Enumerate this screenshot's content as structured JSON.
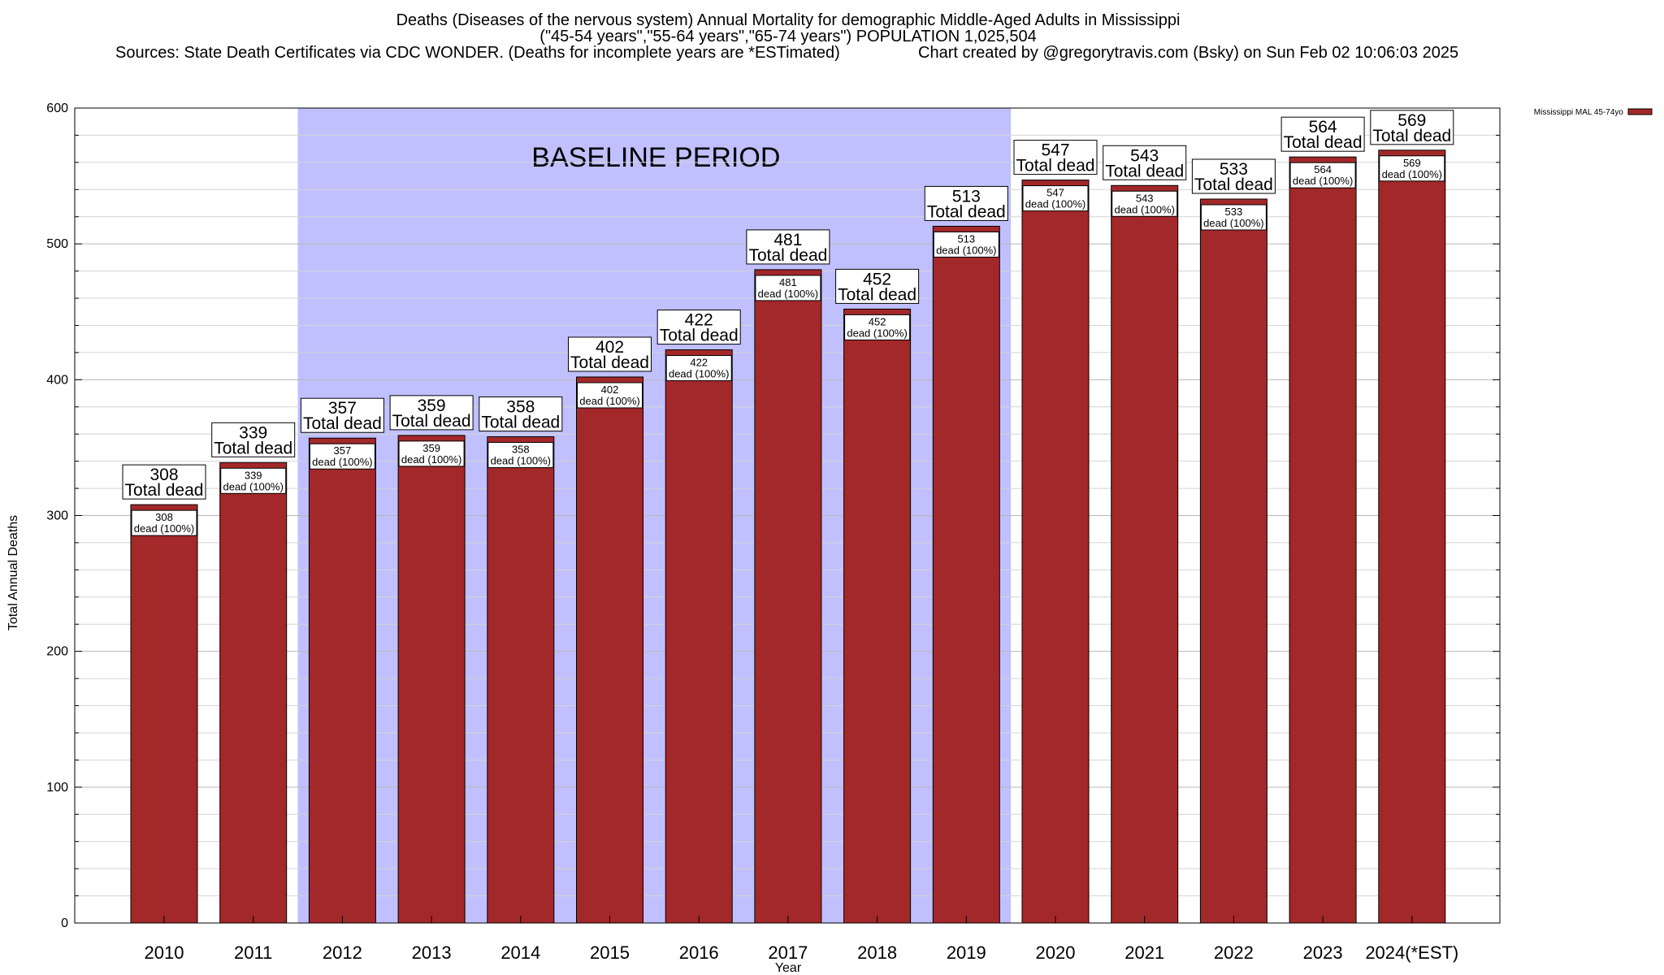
{
  "chart_data": {
    "type": "bar",
    "title_lines": [
      "Deaths (Diseases of the nervous system) Annual Mortality for demographic Middle-Aged Adults in Mississippi",
      "(\"45-54 years\",\"55-64 years\",\"65-74 years\") POPULATION 1,025,504"
    ],
    "sources_text": "Sources: State Death Certificates via CDC WONDER. (Deaths for incomplete years are *ESTimated)",
    "credit_text": "Chart created by @gregorytravis.com (Bsky) on Sun Feb 02 10:06:03 2025",
    "xlabel": "Year",
    "ylabel": "Total Annual Deaths",
    "ylim": [
      0,
      600
    ],
    "yticks": [
      0,
      100,
      200,
      300,
      400,
      500,
      600
    ],
    "grid": true,
    "categories": [
      "2010",
      "2011",
      "2012",
      "2013",
      "2014",
      "2015",
      "2016",
      "2017",
      "2018",
      "2019",
      "2020",
      "2021",
      "2022",
      "2023",
      "2024(*EST)"
    ],
    "series": [
      {
        "name": "Mississippi MAL 45-74yo",
        "values": [
          308,
          339,
          357,
          359,
          358,
          402,
          422,
          481,
          452,
          513,
          547,
          543,
          533,
          564,
          569
        ],
        "color": "#a3282a"
      }
    ],
    "top_label_text": "Total dead",
    "inner_label_text": "dead (100%)",
    "baseline": {
      "label": "BASELINE PERIOD",
      "start": "2012",
      "end": "2019",
      "color": "#c0c0ff"
    },
    "legend_position": "top-right"
  }
}
